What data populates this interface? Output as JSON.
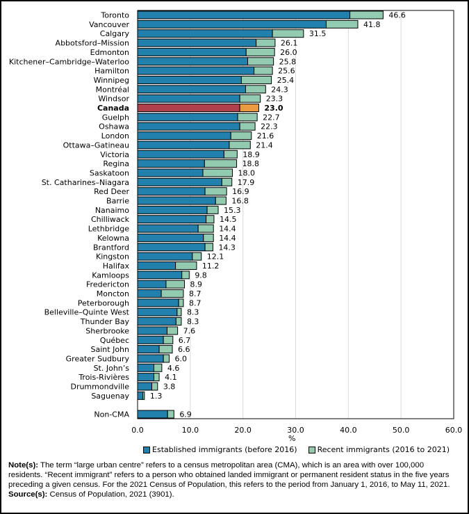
{
  "chart_data": {
    "type": "bar",
    "orientation": "horizontal",
    "stacked": true,
    "title": "",
    "xlabel": "%",
    "ylabel": "",
    "xlim": [
      0,
      60
    ],
    "xticks": [
      "0.0",
      "10.0",
      "20.0",
      "30.0",
      "40.0",
      "50.0",
      "60.0"
    ],
    "grid": true,
    "legend_position": "bottom",
    "categories": [
      "Toronto",
      "Vancouver",
      "Calgary",
      "Abbotsford–Mission",
      "Edmonton",
      "Kitchener–Cambridge–Waterloo",
      "Hamilton",
      "Winnipeg",
      "Montréal",
      "Windsor",
      "Canada",
      "Guelph",
      "Oshawa",
      "London",
      "Ottawa–Gatineau",
      "Victoria",
      "Regina",
      "Saskatoon",
      "St. Catharines–Niagara",
      "Red Deer",
      "Barrie",
      "Nanaimo",
      "Chilliwack",
      "Lethbridge",
      "Kelowna",
      "Brantford",
      "Kingston",
      "Halifax",
      "Kamloops",
      "Fredericton",
      "Moncton",
      "Peterborough",
      "Belleville–Quinte West",
      "Thunder Bay",
      "Sherbrooke",
      "Québec",
      "Saint John",
      "Greater Sudbury",
      "St. John’s",
      "Trois-Rivières",
      "Drummondville",
      "Saguenay",
      "",
      "Non-CMA"
    ],
    "highlight_category": "Canada",
    "series": [
      {
        "name": "Established immigrants (before 2016)",
        "color": "#2280ac",
        "highlight_color": "#b0414a",
        "values": [
          40.3,
          35.8,
          25.6,
          22.5,
          20.6,
          20.9,
          22.1,
          19.7,
          20.5,
          19.4,
          19.4,
          19.0,
          19.4,
          17.7,
          17.4,
          16.4,
          12.7,
          12.4,
          16.0,
          12.8,
          14.8,
          13.2,
          13.0,
          11.5,
          12.5,
          12.8,
          10.4,
          7.2,
          8.4,
          5.4,
          4.5,
          7.8,
          7.5,
          7.3,
          5.6,
          4.9,
          4.1,
          4.9,
          3.1,
          3.1,
          2.7,
          1.0,
          null,
          5.7
        ]
      },
      {
        "name": "Recent immigrants (2016 to 2021)",
        "color": "#93cbb0",
        "highlight_color": "#eb9a3f",
        "values": [
          6.3,
          6.0,
          5.9,
          3.6,
          5.4,
          4.9,
          3.5,
          5.7,
          3.8,
          3.9,
          3.6,
          3.7,
          2.9,
          3.9,
          4.0,
          2.5,
          6.1,
          5.6,
          1.9,
          4.1,
          2.0,
          2.1,
          1.5,
          2.9,
          1.9,
          1.5,
          1.7,
          4.0,
          1.4,
          3.5,
          4.2,
          0.9,
          0.8,
          1.0,
          2.0,
          1.8,
          2.5,
          1.1,
          1.5,
          1.0,
          1.1,
          0.3,
          null,
          1.2
        ]
      }
    ],
    "totals": [
      "46.6",
      "41.8",
      "31.5",
      "26.1",
      "26.0",
      "25.8",
      "25.6",
      "25.4",
      "24.3",
      "23.3",
      "23.0",
      "22.7",
      "22.3",
      "21.6",
      "21.4",
      "18.9",
      "18.8",
      "18.0",
      "17.9",
      "16.9",
      "16.8",
      "15.3",
      "14.5",
      "14.4",
      "14.4",
      "14.3",
      "12.1",
      "11.2",
      "9.8",
      "8.9",
      "8.7",
      "8.7",
      "8.3",
      "8.3",
      "7.6",
      "6.7",
      "6.6",
      "6.0",
      "4.6",
      "4.1",
      "3.8",
      "1.3",
      "",
      "6.9"
    ]
  },
  "legend": {
    "established": "Established immigrants (before 2016)",
    "recent": "Recent immigrants (2016 to 2021)"
  },
  "notes": {
    "note_label": "Note(s):",
    "note_text": " The term “large urban centre” refers to a census metropolitan area (CMA), which is an area with over 100,000 residents. “Recent immigrant” refers to a person who obtained landed immigrant or permanent resident status in the five years preceding a given census. For the 2021 Census of Population, this refers to the period from January 1, 2016, to May 11, 2021.",
    "source_label": "Source(s):",
    "source_text": " Census of Population, 2021 (3901)."
  }
}
